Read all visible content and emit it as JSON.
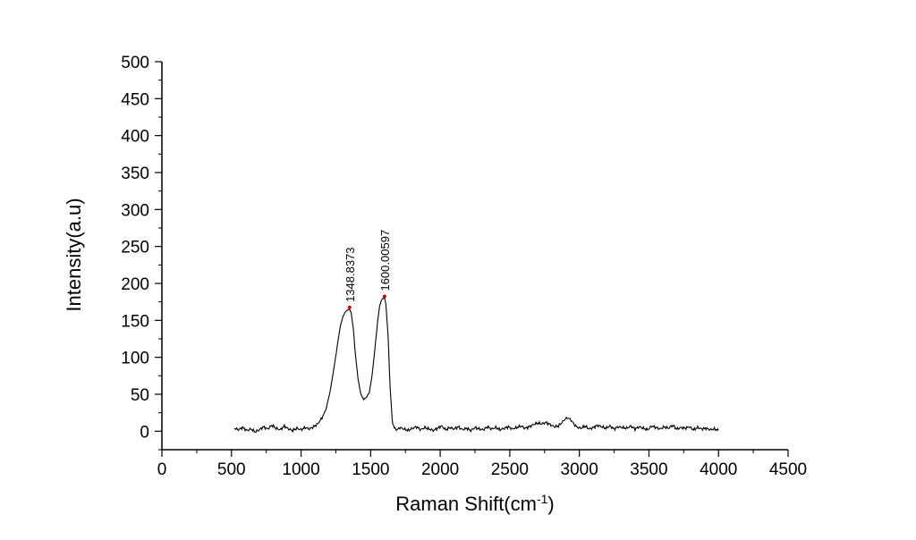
{
  "chart_data": {
    "type": "line",
    "title": "",
    "xlabel": "Raman Shift(cm",
    "xlabel_sup": "-1",
    "xlabel_close": ")",
    "ylabel": "Intensity(a.u)",
    "xlim": [
      0,
      4500
    ],
    "ylim": [
      -25,
      500
    ],
    "x_ticks": [
      0,
      500,
      1000,
      1500,
      2000,
      2500,
      3000,
      3500,
      4000,
      4500
    ],
    "x_tick_labels": [
      "0",
      "500",
      "1000",
      "1500",
      "2000",
      "2500",
      "3000",
      "3500",
      "4000",
      "4500"
    ],
    "y_ticks": [
      0,
      50,
      100,
      150,
      200,
      250,
      300,
      350,
      400,
      450,
      500
    ],
    "y_tick_labels": [
      "0",
      "50",
      "100",
      "150",
      "200",
      "250",
      "300",
      "350",
      "400",
      "450",
      "500"
    ],
    "grid": false,
    "line_color": "#000000",
    "peak_marker_color": "#cc0000",
    "annotations": [
      {
        "x": 1348.8373,
        "y": 165,
        "text": "1348.8373"
      },
      {
        "x": 1600.00597,
        "y": 180,
        "text": "1600.00597"
      }
    ],
    "series": [
      {
        "x": [
          520,
          550,
          580,
          610,
          640,
          670,
          700,
          730,
          760,
          790,
          820,
          850,
          880,
          910,
          940,
          970,
          1000,
          1030,
          1060,
          1090,
          1120,
          1150,
          1180,
          1210,
          1240,
          1260,
          1280,
          1300,
          1320,
          1335,
          1348.8373,
          1360,
          1375,
          1390,
          1410,
          1430,
          1450,
          1470,
          1490,
          1510,
          1530,
          1550,
          1565,
          1580,
          1590,
          1600.00597,
          1610,
          1625,
          1640,
          1655,
          1670,
          1690,
          1710,
          1740,
          1770,
          1800,
          1830,
          1860,
          1890,
          1920,
          1950,
          1980,
          2010,
          2040,
          2070,
          2100,
          2130,
          2160,
          2190,
          2220,
          2250,
          2280,
          2310,
          2340,
          2370,
          2400,
          2430,
          2460,
          2490,
          2520,
          2550,
          2580,
          2610,
          2640,
          2670,
          2700,
          2730,
          2760,
          2790,
          2820,
          2850,
          2880,
          2900,
          2920,
          2940,
          2960,
          2980,
          3010,
          3040,
          3070,
          3100,
          3130,
          3160,
          3190,
          3220,
          3250,
          3280,
          3310,
          3340,
          3370,
          3400,
          3430,
          3460,
          3490,
          3520,
          3550,
          3580,
          3610,
          3640,
          3670,
          3700,
          3730,
          3760,
          3790,
          3820,
          3850,
          3880,
          3910,
          3940,
          3970,
          4000
        ],
        "y": [
          4,
          2,
          5,
          1,
          3,
          -1,
          2,
          6,
          3,
          8,
          4,
          2,
          7,
          3,
          1,
          4,
          2,
          5,
          3,
          6,
          10,
          18,
          30,
          55,
          90,
          115,
          140,
          155,
          162,
          164,
          165,
          160,
          140,
          105,
          70,
          50,
          43,
          46,
          52,
          75,
          110,
          148,
          170,
          178,
          180,
          180,
          172,
          130,
          60,
          15,
          4,
          2,
          5,
          3,
          1,
          4,
          6,
          2,
          5,
          3,
          1,
          4,
          7,
          2,
          5,
          3,
          6,
          2,
          4,
          1,
          5,
          3,
          2,
          6,
          3,
          5,
          2,
          4,
          6,
          3,
          5,
          7,
          4,
          6,
          9,
          11,
          10,
          12,
          9,
          6,
          7,
          13,
          17,
          18,
          15,
          10,
          6,
          4,
          7,
          3,
          5,
          8,
          6,
          4,
          7,
          3,
          6,
          5,
          4,
          7,
          3,
          6,
          4,
          2,
          7,
          5,
          3,
          6,
          4,
          8,
          3,
          5,
          4,
          6,
          2,
          5,
          3,
          4,
          2,
          3,
          1
        ]
      }
    ]
  }
}
